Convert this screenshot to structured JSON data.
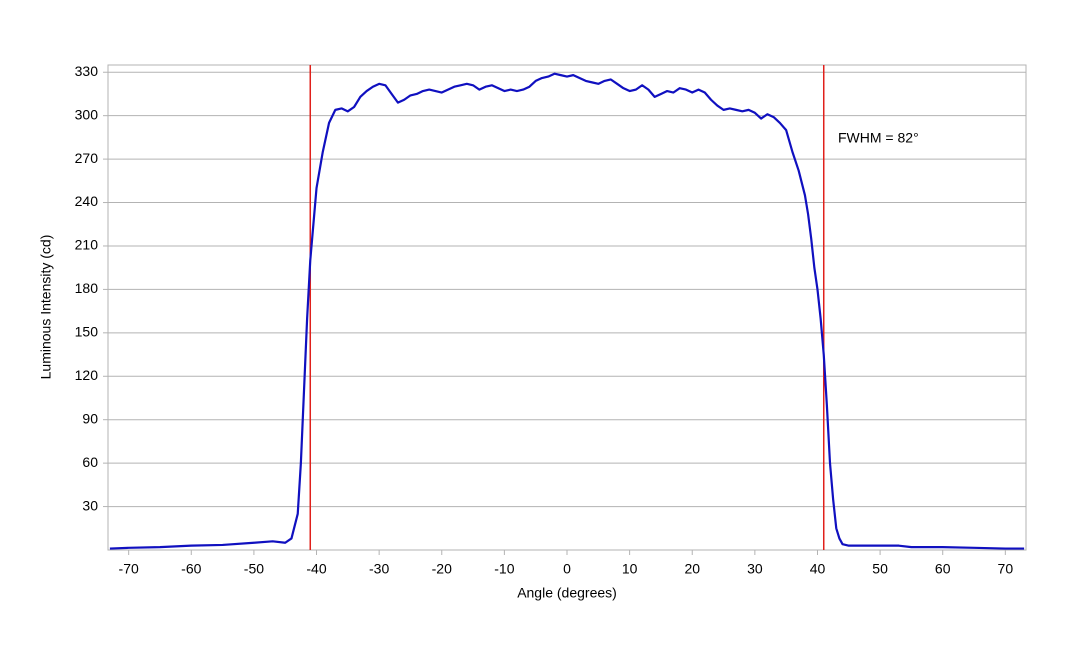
{
  "chart_data": {
    "type": "line",
    "x_label": "Angle (degrees)",
    "y_label": "Luminous Intensity (cd)",
    "annotation": "FWHM = 82°",
    "xlim": [
      -73.3,
      73.3
    ],
    "ylim": [
      0,
      335
    ],
    "xticks": [
      -70,
      -60,
      -50,
      -40,
      -30,
      -20,
      -10,
      0,
      10,
      20,
      30,
      40,
      50,
      60,
      70
    ],
    "yticks": [
      30,
      60,
      90,
      120,
      150,
      180,
      210,
      240,
      270,
      300,
      330
    ],
    "grid": true,
    "vlines": {
      "color": "#e0201b",
      "x": [
        -41,
        41
      ]
    },
    "series": [
      {
        "color": "#1010c0",
        "x": [
          -73,
          -70,
          -65,
          -60,
          -55,
          -50,
          -47,
          -45,
          -44,
          -43,
          -42.5,
          -42,
          -41.5,
          -41,
          -40.5,
          -40,
          -39,
          -38,
          -37,
          -36,
          -35,
          -34,
          -33,
          -32,
          -31,
          -30,
          -29,
          -28,
          -27,
          -26,
          -25,
          -24,
          -23,
          -22,
          -21,
          -20,
          -19,
          -18,
          -17,
          -16,
          -15,
          -14,
          -13,
          -12,
          -11,
          -10,
          -9,
          -8,
          -7,
          -6,
          -5,
          -4,
          -3,
          -2,
          -1,
          0,
          1,
          2,
          3,
          4,
          5,
          6,
          7,
          8,
          9,
          10,
          11,
          12,
          13,
          14,
          15,
          16,
          17,
          18,
          19,
          20,
          21,
          22,
          23,
          24,
          25,
          26,
          27,
          28,
          29,
          30,
          31,
          32,
          33,
          34,
          35,
          36,
          37,
          38,
          38.5,
          39,
          39.5,
          40,
          40.5,
          41,
          41.5,
          42,
          42.5,
          43,
          43.5,
          44,
          45,
          50,
          53,
          55,
          60,
          65,
          70,
          73
        ],
        "values": [
          1,
          1.5,
          2,
          3,
          3.5,
          5,
          6,
          5,
          8,
          25,
          60,
          110,
          160,
          200,
          225,
          250,
          275,
          295,
          304,
          305,
          303,
          306,
          313,
          317,
          320,
          322,
          321,
          315,
          309,
          311,
          314,
          315,
          317,
          318,
          317,
          316,
          318,
          320,
          321,
          322,
          321,
          318,
          320,
          321,
          319,
          317,
          318,
          317,
          318,
          320,
          324,
          326,
          327,
          329,
          328,
          327,
          328,
          326,
          324,
          323,
          322,
          324,
          325,
          322,
          319,
          317,
          318,
          321,
          318,
          313,
          315,
          317,
          316,
          319,
          318,
          316,
          318,
          316,
          311,
          307,
          304,
          305,
          304,
          303,
          304,
          302,
          298,
          301,
          299,
          295,
          290,
          275,
          262,
          245,
          232,
          215,
          195,
          180,
          160,
          135,
          100,
          60,
          35,
          15,
          8,
          4,
          3,
          3,
          3,
          2,
          2,
          1.5,
          1,
          1
        ]
      }
    ]
  }
}
